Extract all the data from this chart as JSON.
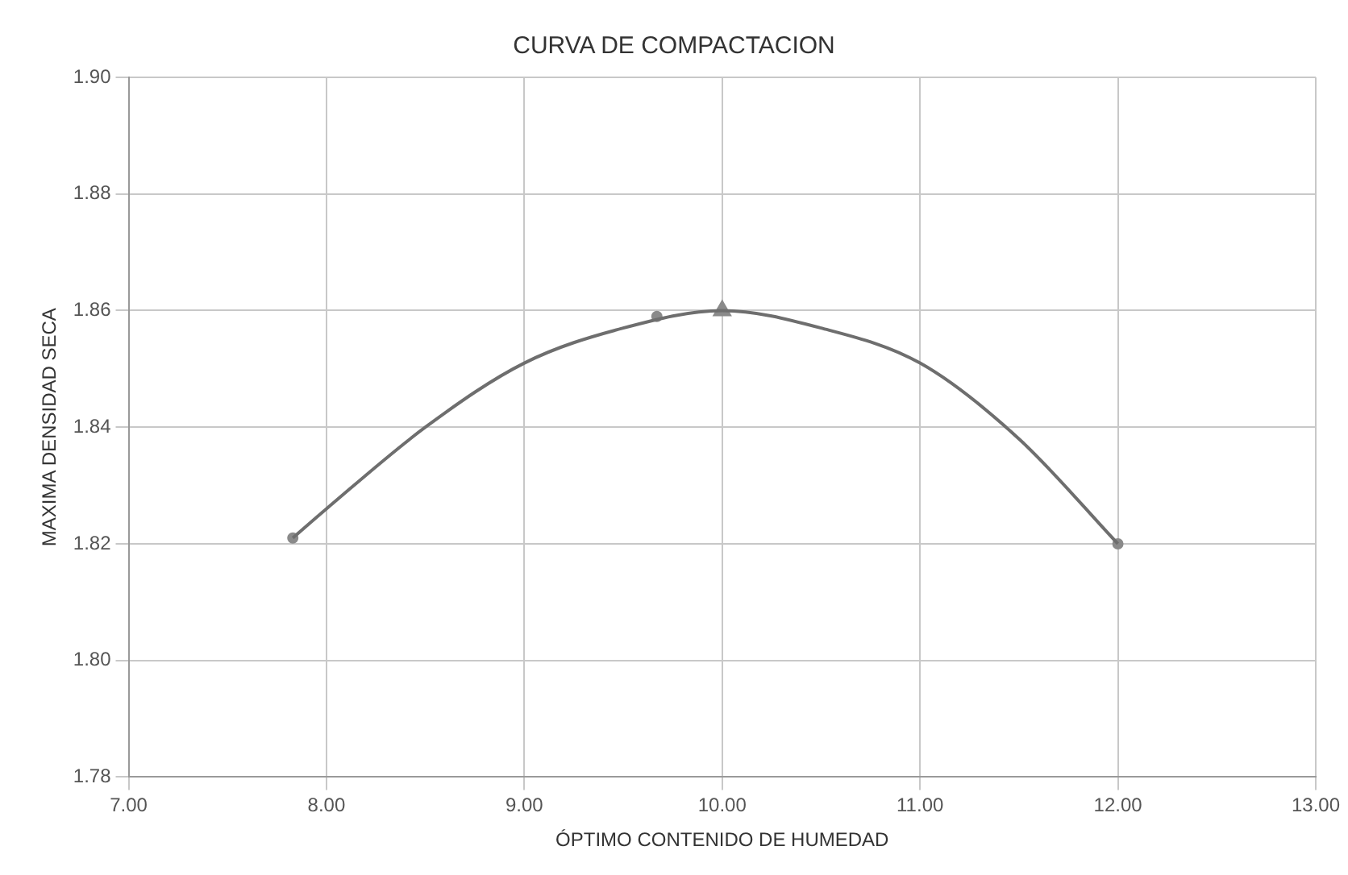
{
  "chart_data": {
    "type": "line",
    "title": "CURVA DE COMPACTACION",
    "xlabel": "ÓPTIMO CONTENIDO DE HUMEDAD",
    "ylabel": "MAXIMA DENSIDAD SECA",
    "series": [
      {
        "type": "line",
        "color": "#6e6e6e",
        "marker": "none",
        "x": [
          7.83,
          8,
          8.5,
          9,
          9.5,
          10,
          10.5,
          11,
          11.5,
          12
        ],
        "values": [
          1.821,
          1.826,
          1.84,
          1.851,
          1.857,
          1.86,
          1.857,
          1.851,
          1.838,
          1.82
        ]
      },
      {
        "type": "scatter",
        "color": "#8a8a8a",
        "marker": "circle",
        "x": [
          7.83,
          9.67,
          12
        ],
        "values": [
          1.821,
          1.859,
          1.82
        ]
      },
      {
        "type": "scatter",
        "color": "#8a8a8a",
        "marker": "triangle",
        "x": [
          10
        ],
        "values": [
          1.86
        ]
      }
    ],
    "xlim": [
      7,
      13
    ],
    "xticks": [
      {
        "value": 7,
        "label": "7.00"
      },
      {
        "value": 8,
        "label": "8.00"
      },
      {
        "value": 9,
        "label": "9.00"
      },
      {
        "value": 10,
        "label": "10.00"
      },
      {
        "value": 11,
        "label": "11.00"
      },
      {
        "value": 12,
        "label": "12.00"
      },
      {
        "value": 13,
        "label": "13.00"
      }
    ],
    "ylim": [
      1.78,
      1.9
    ],
    "yticks": [
      {
        "value": 1.78,
        "label": "1.78"
      },
      {
        "value": 1.8,
        "label": "1.80"
      },
      {
        "value": 1.82,
        "label": "1.82"
      },
      {
        "value": 1.84,
        "label": "1.84"
      },
      {
        "value": 1.86,
        "label": "1.86"
      },
      {
        "value": 1.88,
        "label": "1.88"
      },
      {
        "value": 1.9,
        "label": "1.90"
      }
    ],
    "grid": true,
    "legend": false
  }
}
